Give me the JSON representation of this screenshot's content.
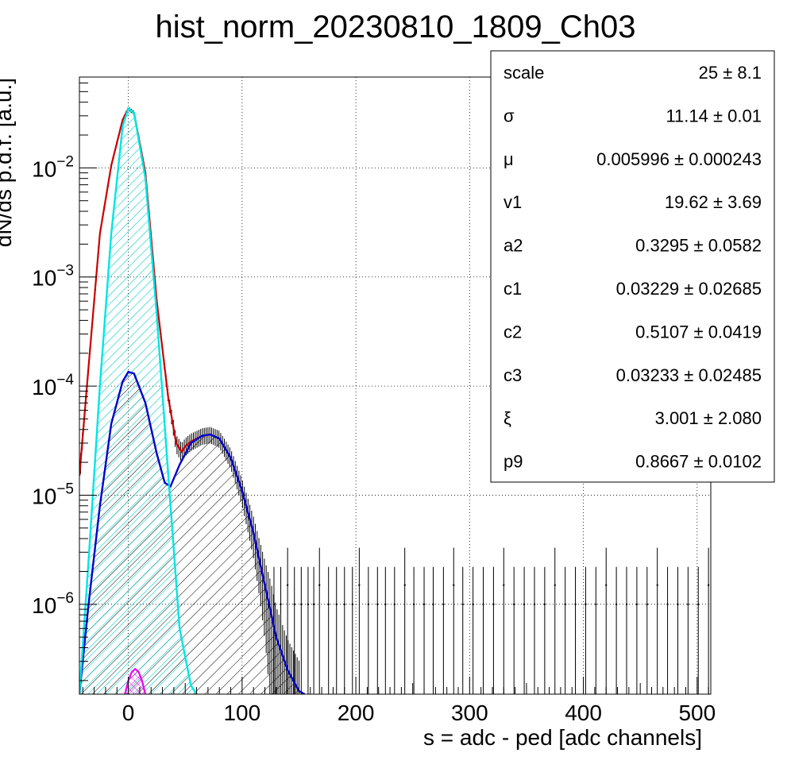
{
  "chart_data": {
    "type": "line",
    "title": "hist_norm_20230810_1809_Ch03",
    "xlabel": "s = adc - ped [adc channels]",
    "ylabel": "dN/ds p.d.f. [a.u.]",
    "xlim": [
      -43,
      512
    ],
    "ylim": [
      1.5e-07,
      0.068
    ],
    "y_scale": "log",
    "grid": true,
    "x_ticks": [
      {
        "v": 0,
        "label": "0"
      },
      {
        "v": 100,
        "label": "100"
      },
      {
        "v": 200,
        "label": "200"
      },
      {
        "v": 300,
        "label": "300"
      },
      {
        "v": 400,
        "label": "400"
      },
      {
        "v": 500,
        "label": "500"
      }
    ],
    "y_ticks": [
      {
        "v": 0.01,
        "base": "10",
        "exp": "−2"
      },
      {
        "v": 0.001,
        "base": "10",
        "exp": "−3"
      },
      {
        "v": 0.0001,
        "base": "10",
        "exp": "−4"
      },
      {
        "v": 1e-05,
        "base": "10",
        "exp": "−5"
      },
      {
        "v": 1e-06,
        "base": "10",
        "exp": "−6"
      }
    ],
    "colors": {
      "data": "#000000",
      "total_fit": "#cc0000",
      "pedestal": "#00e5e5",
      "signal": "#0000cc",
      "small_peak": "#ee00ee"
    },
    "series": [
      {
        "key": "pedestal",
        "x": [
          -43,
          -35,
          -25,
          -15,
          -5,
          0,
          5,
          15,
          25,
          35,
          45,
          55,
          60
        ],
        "y": [
          1.5e-07,
          2.5e-06,
          0.0001,
          0.0025,
          0.024,
          0.035,
          0.032,
          0.008,
          0.00045,
          1.6e-05,
          6e-07,
          1.8e-07,
          1.5e-07
        ]
      },
      {
        "key": "signal",
        "x": [
          -43,
          -35,
          -25,
          -15,
          -5,
          0,
          5,
          15,
          25,
          32,
          37,
          45,
          55,
          65,
          72,
          80,
          90,
          100,
          110,
          120,
          130,
          140,
          150,
          155
        ],
        "y": [
          1.5e-07,
          1e-06,
          8e-06,
          4.5e-05,
          0.00011,
          0.000135,
          0.00013,
          7e-05,
          2.4e-05,
          1.3e-05,
          1.2e-05,
          1.9e-05,
          3e-05,
          3.5e-05,
          3.6e-05,
          3.3e-05,
          2.2e-05,
          1.1e-05,
          4.5e-06,
          1.5e-06,
          5e-07,
          2.5e-07,
          1.6e-07,
          1.5e-07
        ]
      },
      {
        "key": "total_fit",
        "x": [
          -43,
          -35,
          -25,
          -15,
          -5,
          0,
          5,
          15,
          25,
          35,
          42,
          47,
          50,
          55,
          65,
          72,
          80,
          90,
          100,
          110,
          120,
          130,
          140,
          150,
          155
        ],
        "y": [
          1.5e-05,
          0.00015,
          0.0025,
          0.0105,
          0.0275,
          0.035,
          0.032,
          0.009,
          0.0006,
          8e-05,
          3e-05,
          2.5e-05,
          2.8e-05,
          3.1e-05,
          3.5e-05,
          3.6e-05,
          3.3e-05,
          2.2e-05,
          1.1e-05,
          4.5e-06,
          1.5e-06,
          5e-07,
          2.5e-07,
          1.6e-07,
          1.5e-07
        ]
      },
      {
        "key": "small_peak",
        "x": [
          -3,
          0,
          3,
          6,
          9,
          12,
          15
        ],
        "y": [
          1.5e-07,
          2e-07,
          2.4e-07,
          2.55e-07,
          2.4e-07,
          2e-07,
          1.5e-07
        ]
      }
    ]
  },
  "stats": [
    {
      "name": "scale",
      "value": "25 ± 8.1"
    },
    {
      "name": "σ",
      "value": "11.14 ± 0.01"
    },
    {
      "name": "μ",
      "value": "0.005996 ± 0.000243"
    },
    {
      "name": "v1",
      "value": "19.62 ± 3.69"
    },
    {
      "name": "a2",
      "value": "0.3295 ± 0.0582"
    },
    {
      "name": "c1",
      "value": "0.03229 ± 0.02685"
    },
    {
      "name": "c2",
      "value": "0.5107 ± 0.0419"
    },
    {
      "name": "c3",
      "value": "0.03233 ± 0.02485"
    },
    {
      "name": "ξ",
      "value": "3.001 ± 2.080"
    },
    {
      "name": "p9",
      "value": "0.8667 ± 0.0102"
    }
  ]
}
